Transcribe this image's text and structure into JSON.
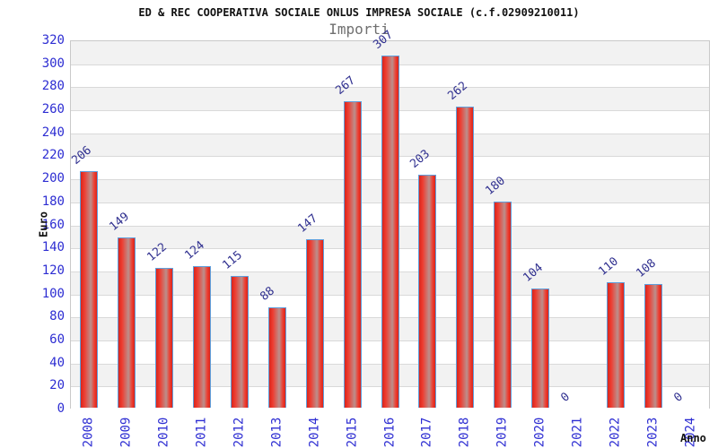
{
  "chart_data": {
    "type": "bar",
    "title": "ED & REC COOPERATIVA SOCIALE ONLUS IMPRESA SOCIALE (c.f.02909210011)",
    "subtitle": "Importi",
    "xlabel": "Anno",
    "ylabel": "Euro",
    "categories": [
      "2008",
      "2009",
      "2010",
      "2011",
      "2012",
      "2013",
      "2014",
      "2015",
      "2016",
      "2017",
      "2018",
      "2019",
      "2020",
      "2021",
      "2022",
      "2023",
      "2024"
    ],
    "values": [
      206,
      149,
      122,
      124,
      115,
      88,
      147,
      267,
      307,
      203,
      262,
      180,
      104,
      0,
      110,
      108,
      0
    ],
    "ylim": [
      0,
      320
    ],
    "ytick_step": 20,
    "grid": "horizontal-bands-alternating",
    "legend_position": "none",
    "colors": {
      "bar_edge_red": "#d8251b",
      "bar_mid_red": "#ee3d31",
      "bar_highlight": "#bb8f8c",
      "bar_border": "#5f9fdc",
      "axis_tick_text": "#2d2dd2",
      "value_label_text": "#2f2f8f",
      "band_gray": "#f2f2f2",
      "band_white": "#ffffff",
      "gridline": "#d9d9d9",
      "plot_border": "#c9c9c9",
      "title_color": "#111111",
      "subtitle_color": "#707070"
    }
  }
}
